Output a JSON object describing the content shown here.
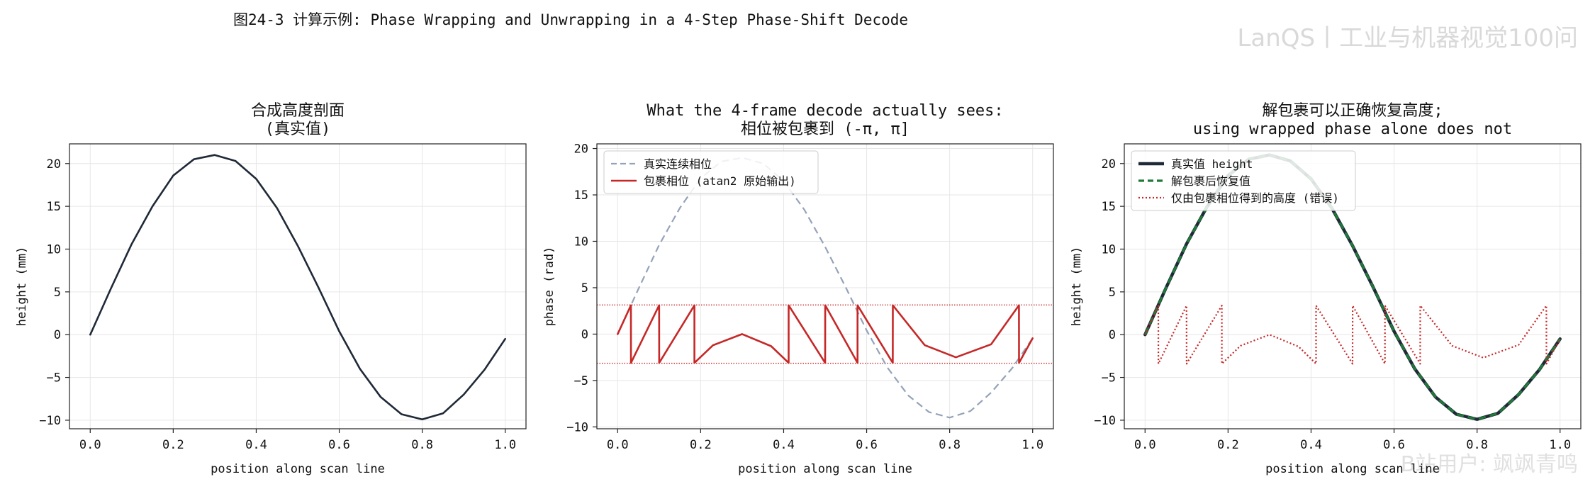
{
  "figure": {
    "suptitle": "图24-3  计算示例: Phase Wrapping and Unwrapping in a 4-Step Phase-Shift Decode",
    "watermark_top": "LanQS丨工业与机器视觉100问",
    "watermark_bottom": "B站用户: 飒飒青鸣"
  },
  "colors": {
    "true_height": "#1f2937",
    "true_phase_dashed": "#94a3b8",
    "wrapped": "#c62828",
    "recovered": "#1f7a3a",
    "grid": "#e6e6e6"
  },
  "chart_data": [
    {
      "type": "line",
      "title": "合成高度剖面\n(真实值)",
      "xlabel": "position along scan line",
      "ylabel": "height (mm)",
      "xlim": [
        -0.05,
        1.05
      ],
      "ylim": [
        -11.0,
        22.3
      ],
      "xticks": [
        0.0,
        0.2,
        0.4,
        0.6,
        0.8,
        1.0
      ],
      "yticks": [
        -10,
        -5,
        0,
        5,
        10,
        15,
        20
      ],
      "grid": true,
      "legend": null,
      "series": [
        {
          "style": "solid",
          "color_key": "true_height",
          "x": [
            0.0,
            0.05,
            0.1,
            0.15,
            0.2,
            0.25,
            0.3,
            0.35,
            0.4,
            0.45,
            0.5,
            0.55,
            0.6,
            0.65,
            0.7,
            0.75,
            0.8,
            0.85,
            0.9,
            0.95,
            1.0
          ],
          "y": [
            0.0,
            5.4,
            10.6,
            15.0,
            18.6,
            20.5,
            21.0,
            20.3,
            18.2,
            14.8,
            10.4,
            5.5,
            0.4,
            -4.0,
            -7.3,
            -9.3,
            -9.9,
            -9.2,
            -7.0,
            -4.1,
            -0.5
          ]
        }
      ]
    },
    {
      "type": "line",
      "title": "What the 4-frame decode actually sees:\n相位被包裹到 (-π, π]",
      "xlabel": "position along scan line",
      "ylabel": "phase (rad)",
      "xlim": [
        -0.05,
        1.05
      ],
      "ylim": [
        -10.2,
        20.5
      ],
      "xticks": [
        0.0,
        0.2,
        0.4,
        0.6,
        0.8,
        1.0
      ],
      "yticks": [
        -10,
        -5,
        0,
        5,
        10,
        15,
        20
      ],
      "grid": true,
      "legend": "top-left",
      "hlines": [
        3.14,
        -3.14
      ],
      "series": [
        {
          "name": "真实连续相位",
          "style": "dashed",
          "color_key": "true_phase_dashed",
          "x": [
            0.0,
            0.05,
            0.1,
            0.15,
            0.2,
            0.25,
            0.3,
            0.35,
            0.4,
            0.45,
            0.5,
            0.55,
            0.6,
            0.65,
            0.7,
            0.75,
            0.8,
            0.85,
            0.9,
            0.95,
            1.0
          ],
          "y": [
            0.0,
            4.85,
            9.6,
            13.6,
            16.8,
            18.6,
            19.0,
            18.4,
            16.5,
            13.4,
            9.4,
            5.0,
            0.4,
            -3.6,
            -6.6,
            -8.4,
            -9.0,
            -8.3,
            -6.3,
            -3.7,
            -0.45
          ]
        },
        {
          "name": "包裹相位 (atan2 原始输出)",
          "style": "solid",
          "color_key": "wrapped",
          "x": [
            0.0,
            0.032,
            0.0321,
            0.1,
            0.1001,
            0.185,
            0.1851,
            0.23,
            0.3,
            0.37,
            0.412,
            0.4121,
            0.5,
            0.5001,
            0.578,
            0.5781,
            0.663,
            0.6631,
            0.74,
            0.815,
            0.9,
            0.967,
            0.9671,
            1.0
          ],
          "y": [
            0.0,
            3.1,
            -3.1,
            3.1,
            -3.1,
            3.1,
            -3.1,
            -1.2,
            0.0,
            -1.3,
            -3.1,
            3.1,
            -3.1,
            3.1,
            -3.1,
            3.1,
            -3.1,
            3.1,
            -1.2,
            -2.5,
            -1.1,
            3.1,
            -3.1,
            -0.45
          ]
        }
      ]
    },
    {
      "type": "line",
      "title": "解包裹可以正确恢复高度;\nusing wrapped phase alone does not",
      "xlabel": "position along scan line",
      "ylabel": "height (mm)",
      "xlim": [
        -0.05,
        1.05
      ],
      "ylim": [
        -11.0,
        22.3
      ],
      "xticks": [
        0.0,
        0.2,
        0.4,
        0.6,
        0.8,
        1.0
      ],
      "yticks": [
        -10,
        -5,
        0,
        5,
        10,
        15,
        20
      ],
      "grid": true,
      "legend": "top-left",
      "series": [
        {
          "name": "真实值 height",
          "style": "solid-thick",
          "color_key": "true_height",
          "x": [
            0.0,
            0.05,
            0.1,
            0.15,
            0.2,
            0.25,
            0.3,
            0.35,
            0.4,
            0.45,
            0.5,
            0.55,
            0.6,
            0.65,
            0.7,
            0.75,
            0.8,
            0.85,
            0.9,
            0.95,
            1.0
          ],
          "y": [
            0.0,
            5.4,
            10.6,
            15.0,
            18.6,
            20.5,
            21.0,
            20.3,
            18.2,
            14.8,
            10.4,
            5.5,
            0.4,
            -4.0,
            -7.3,
            -9.3,
            -9.9,
            -9.2,
            -7.0,
            -4.1,
            -0.5
          ]
        },
        {
          "name": "解包裹后恢复值",
          "style": "dashed",
          "color_key": "recovered",
          "x": [
            0.0,
            0.05,
            0.1,
            0.15,
            0.2,
            0.25,
            0.3,
            0.35,
            0.4,
            0.45,
            0.5,
            0.55,
            0.6,
            0.65,
            0.7,
            0.75,
            0.8,
            0.85,
            0.9,
            0.95,
            1.0
          ],
          "y": [
            0.0,
            5.4,
            10.6,
            15.0,
            18.6,
            20.5,
            21.0,
            20.3,
            18.2,
            14.8,
            10.4,
            5.5,
            0.4,
            -4.0,
            -7.3,
            -9.3,
            -9.9,
            -9.2,
            -7.0,
            -4.1,
            -0.5
          ]
        },
        {
          "name": "仅由包裹相位得到的高度 (错误)",
          "style": "dotted",
          "color_key": "wrapped",
          "x": [
            0.0,
            0.032,
            0.0321,
            0.1,
            0.1001,
            0.185,
            0.1851,
            0.23,
            0.3,
            0.37,
            0.412,
            0.4121,
            0.5,
            0.5001,
            0.578,
            0.5781,
            0.663,
            0.6631,
            0.74,
            0.815,
            0.9,
            0.967,
            0.9671,
            1.0
          ],
          "y": [
            0.0,
            3.4,
            -3.4,
            3.4,
            -3.4,
            3.4,
            -3.4,
            -1.3,
            0.0,
            -1.4,
            -3.4,
            3.4,
            -3.4,
            3.4,
            -3.4,
            3.4,
            -3.4,
            3.4,
            -1.3,
            -2.7,
            -1.2,
            3.4,
            -3.4,
            -0.5
          ]
        }
      ]
    }
  ]
}
